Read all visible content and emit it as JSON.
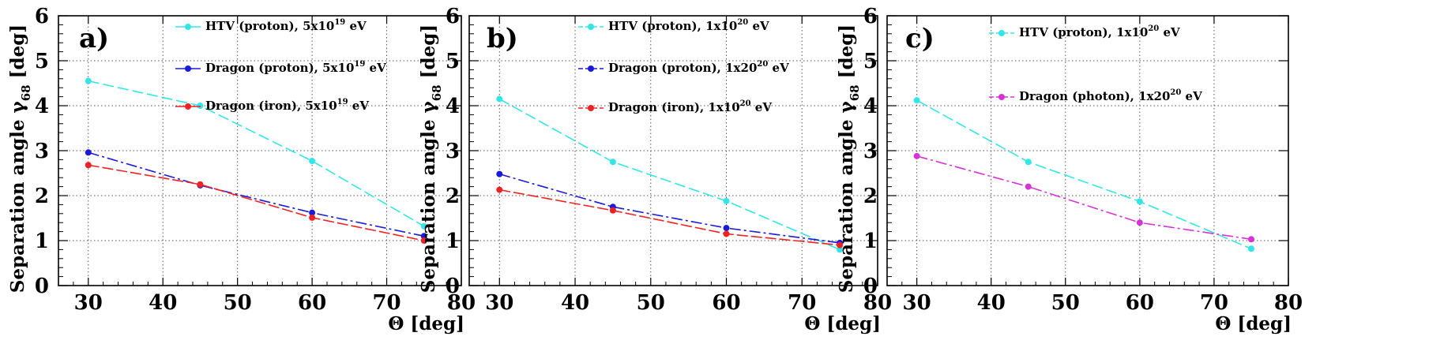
{
  "chart_data": [
    {
      "type": "line",
      "panel_label": "a)",
      "xlabel": "Θ [deg]",
      "ylabel_main": "Separation angle  γ",
      "ylabel_sub": "68",
      "ylabel_unit": "  [deg]",
      "xlim": [
        26,
        80
      ],
      "ylim": [
        0,
        6
      ],
      "xticks": [
        30,
        40,
        50,
        60,
        70,
        80
      ],
      "yticks": [
        0,
        1,
        2,
        3,
        4,
        5,
        6
      ],
      "grid": true,
      "series": [
        {
          "name": "HTV (proton), 5x10^19 eV",
          "label_main": "HTV (proton), 5x10",
          "label_sup": "19",
          "label_tail": " eV",
          "color": "#33e6e6",
          "dash": "14 5",
          "x": [
            30,
            45,
            60,
            75
          ],
          "values": [
            4.55,
            4.0,
            2.77,
            1.32
          ]
        },
        {
          "name": "Dragon (proton), 5x10^19 eV",
          "label_main": "Dragon (proton), 5x10",
          "label_sup": "19",
          "label_tail": " eV",
          "color": "#1a1ad9",
          "dash": "14 4 3 4",
          "x": [
            30,
            45,
            60,
            75
          ],
          "values": [
            2.96,
            2.23,
            1.62,
            1.1
          ]
        },
        {
          "name": "Dragon (iron), 5x10^19 eV",
          "label_main": "Dragon (iron), 5x10",
          "label_sup": "19",
          "label_tail": " eV",
          "color": "#ee2222",
          "dash": "14 4",
          "x": [
            30,
            45,
            60,
            75
          ],
          "values": [
            2.68,
            2.25,
            1.51,
            1.0
          ]
        }
      ]
    },
    {
      "type": "line",
      "panel_label": "b)",
      "xlabel": "Θ [deg]",
      "ylabel_main": "Separation angle  γ",
      "ylabel_sub": "68",
      "ylabel_unit": "  [deg]",
      "xlim": [
        26,
        80
      ],
      "ylim": [
        0,
        6
      ],
      "xticks": [
        30,
        40,
        50,
        60,
        70,
        80
      ],
      "yticks": [
        0,
        1,
        2,
        3,
        4,
        5,
        6
      ],
      "grid": true,
      "series": [
        {
          "name": "HTV (proton), 1x10^20 eV",
          "label_main": "HTV (proton), 1x10",
          "label_sup": "20",
          "label_tail": " eV",
          "color": "#33e6e6",
          "dash": "14 5",
          "x": [
            30,
            45,
            60,
            75
          ],
          "values": [
            4.15,
            2.75,
            1.88,
            0.8
          ]
        },
        {
          "name": "Dragon (proton), 1x20^20 eV",
          "label_main": "Dragon (proton), 1x20",
          "label_sup": "20",
          "label_tail": " eV",
          "color": "#1a1ad9",
          "dash": "14 4 3 4",
          "x": [
            30,
            45,
            60,
            75
          ],
          "values": [
            2.48,
            1.75,
            1.28,
            0.95
          ]
        },
        {
          "name": "Dragon (iron), 1x10^20 eV",
          "label_main": "Dragon (iron), 1x10",
          "label_sup": "20",
          "label_tail": " eV",
          "color": "#ee2222",
          "dash": "14 4",
          "x": [
            30,
            45,
            60,
            75
          ],
          "values": [
            2.13,
            1.67,
            1.15,
            0.9
          ]
        }
      ]
    },
    {
      "type": "line",
      "panel_label": "c)",
      "xlabel": "Θ [deg]",
      "ylabel_main": "Separation angle  γ",
      "ylabel_sub": "68",
      "ylabel_unit": "  [deg]",
      "xlim": [
        26,
        80
      ],
      "ylim": [
        0,
        6
      ],
      "xticks": [
        30,
        40,
        50,
        60,
        70,
        80
      ],
      "yticks": [
        0,
        1,
        2,
        3,
        4,
        5,
        6
      ],
      "grid": true,
      "series": [
        {
          "name": "HTV (proton), 1x10^20 eV",
          "label_main": "HTV (proton), 1x10",
          "label_sup": "20",
          "label_tail": " eV",
          "color": "#33e6e6",
          "dash": "14 5",
          "x": [
            30,
            45,
            60,
            75
          ],
          "values": [
            4.12,
            2.75,
            1.87,
            0.82
          ]
        },
        {
          "name": "Dragon (photon), 1x20^20 eV",
          "label_main": "Dragon (photon), 1x20",
          "label_sup": "20",
          "label_tail": " eV",
          "color": "#d633d6",
          "dash": "14 4 3 4",
          "x": [
            30,
            45,
            60,
            75
          ],
          "values": [
            2.88,
            2.2,
            1.4,
            1.03
          ]
        }
      ]
    }
  ]
}
